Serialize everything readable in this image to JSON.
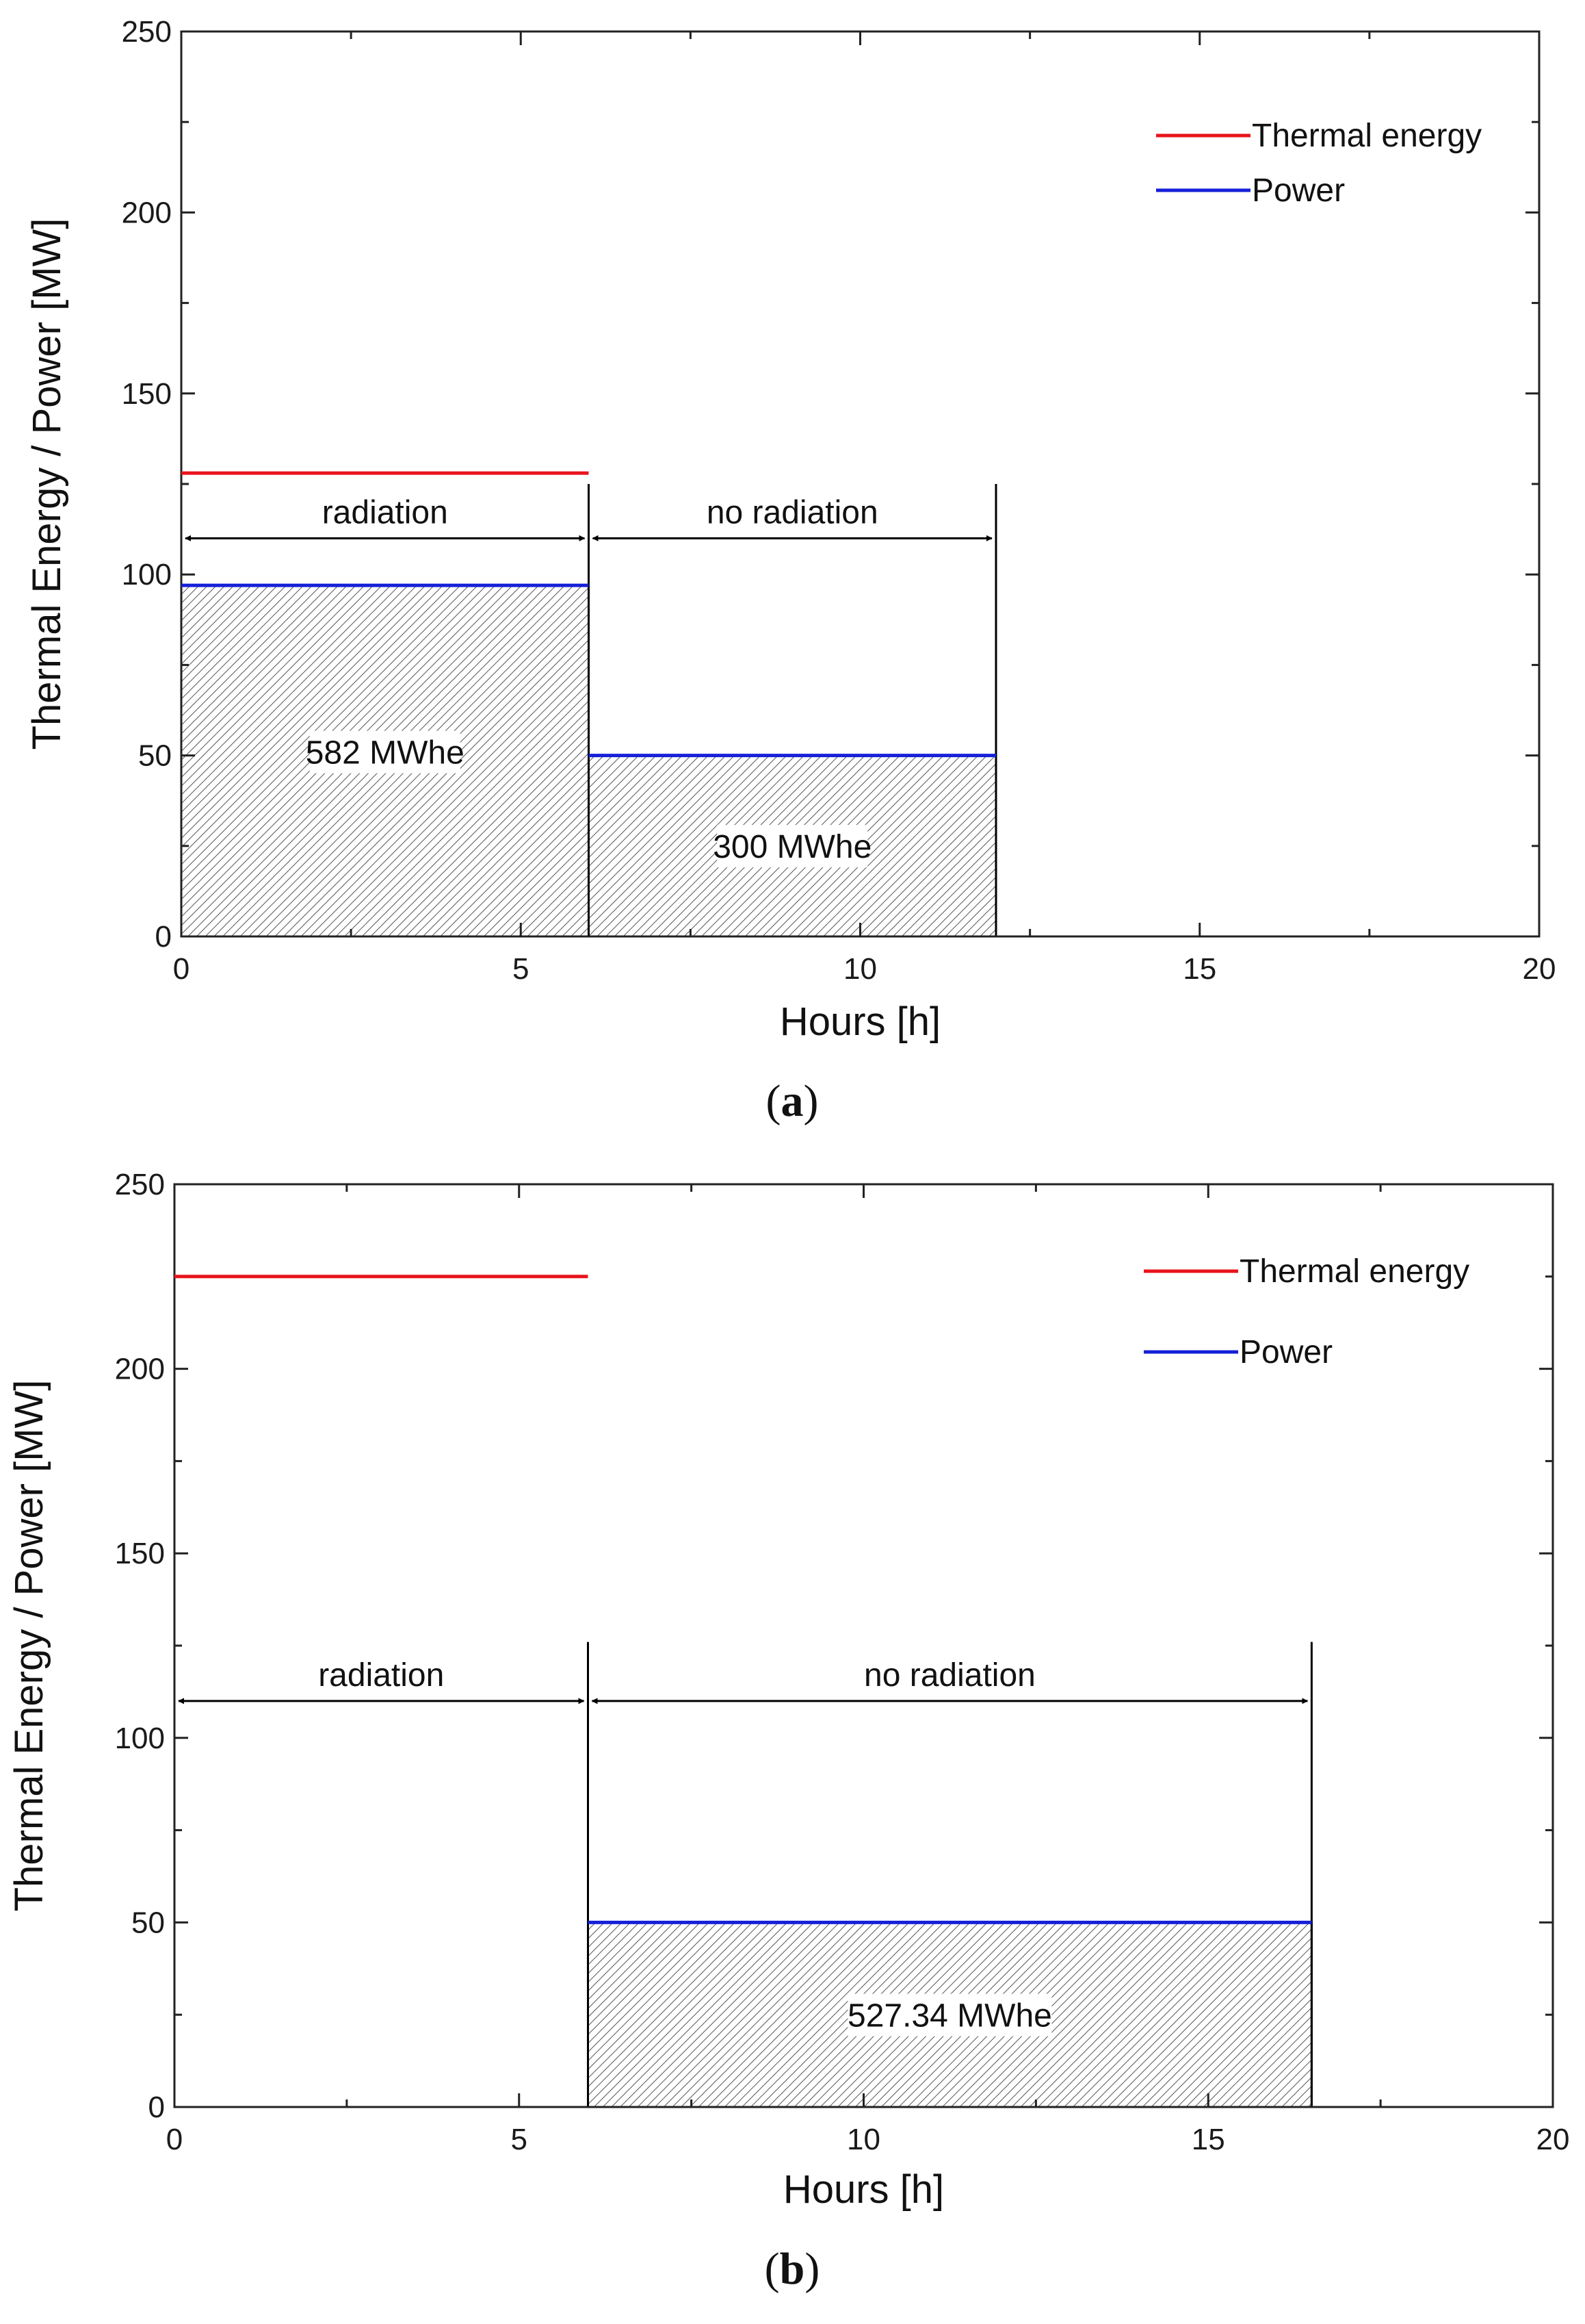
{
  "chart_data": [
    {
      "panel": "a",
      "type": "line",
      "caption_letter": "a",
      "xlabel": "Hours [h]",
      "ylabel": "Thermal Energy / Power [MW]",
      "xlim": [
        0,
        20
      ],
      "ylim": [
        0,
        250
      ],
      "xticks": [
        0,
        5,
        10,
        15,
        20
      ],
      "yticks": [
        0,
        50,
        100,
        150,
        200,
        250
      ],
      "legend_position": "top-right",
      "legend": [
        {
          "name": "Thermal energy",
          "color": "#e8141c"
        },
        {
          "name": "Power",
          "color": "#1520d8"
        }
      ],
      "series": [
        {
          "name": "Thermal energy",
          "color": "#e8141c",
          "segments": [
            {
              "x0": 0,
              "x1": 6,
              "y": 128
            }
          ]
        },
        {
          "name": "Power",
          "color": "#1520d8",
          "segments": [
            {
              "x0": 0,
              "x1": 6,
              "y": 97
            },
            {
              "x0": 6,
              "x1": 12,
              "y": 50
            }
          ]
        }
      ],
      "areas": [
        {
          "x0": 0,
          "x1": 6,
          "y": 97,
          "label": "582 MWhe",
          "label_y": 50
        },
        {
          "x0": 6,
          "x1": 12,
          "y": 50,
          "label": "300 MWhe",
          "label_y": 24
        }
      ],
      "dividers": [
        {
          "x": 6,
          "y_top": 125
        },
        {
          "x": 12,
          "y_top": 125
        }
      ],
      "spans": [
        {
          "x0": 0,
          "x1": 6,
          "y": 110,
          "label": "radiation"
        },
        {
          "x0": 6,
          "x1": 12,
          "y": 110,
          "label": "no radiation"
        }
      ]
    },
    {
      "panel": "b",
      "type": "line",
      "caption_letter": "b",
      "xlabel": "Hours [h]",
      "ylabel": "Thermal Energy / Power [MW]",
      "xlim": [
        0,
        20
      ],
      "ylim": [
        0,
        250
      ],
      "xticks": [
        0,
        5,
        10,
        15,
        20
      ],
      "yticks": [
        0,
        50,
        100,
        150,
        200,
        250
      ],
      "legend_position": "top-right",
      "legend": [
        {
          "name": "Thermal energy",
          "color": "#e8141c"
        },
        {
          "name": "Power",
          "color": "#1520d8"
        }
      ],
      "series": [
        {
          "name": "Thermal energy",
          "color": "#e8141c",
          "segments": [
            {
              "x0": 0,
              "x1": 6,
              "y": 225
            }
          ]
        },
        {
          "name": "Power",
          "color": "#1520d8",
          "segments": [
            {
              "x0": 6,
              "x1": 16.5,
              "y": 50
            }
          ]
        }
      ],
      "areas": [
        {
          "x0": 6,
          "x1": 16.5,
          "y": 50,
          "label": "527.34 MWhe",
          "label_y": 24
        }
      ],
      "dividers": [
        {
          "x": 6,
          "y_top": 126
        },
        {
          "x": 16.5,
          "y_top": 126
        }
      ],
      "spans": [
        {
          "x0": 0,
          "x1": 6,
          "y": 110,
          "label": "radiation"
        },
        {
          "x0": 6,
          "x1": 16.5,
          "y": 110,
          "label": "no radiation"
        }
      ]
    }
  ]
}
